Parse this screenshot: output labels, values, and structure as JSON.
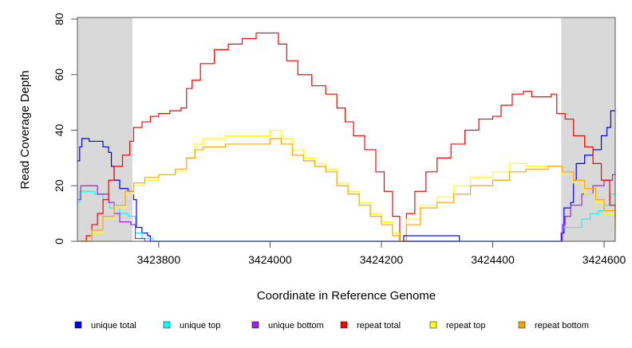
{
  "chart_data": {
    "type": "line",
    "title": "",
    "xlabel": "Coordinate in Reference Genome",
    "ylabel": "Read Coverage Depth",
    "xlim": [
      3423654,
      3424620
    ],
    "ylim": [
      0,
      80
    ],
    "xticks": [
      3423800,
      3424000,
      3424200,
      3424400,
      3424600
    ],
    "yticks": [
      0,
      20,
      40,
      60,
      80
    ],
    "shaded_regions": [
      [
        3423654,
        3423753
      ],
      [
        3424523,
        3424620
      ]
    ],
    "legend_position": "bottom",
    "series": [
      {
        "name": "unique total",
        "color": "#0000ff",
        "points": [
          [
            3423654,
            29
          ],
          [
            3423658,
            34
          ],
          [
            3423662,
            37
          ],
          [
            3423670,
            37
          ],
          [
            3423675,
            36
          ],
          [
            3423690,
            36
          ],
          [
            3423700,
            34
          ],
          [
            3423710,
            32
          ],
          [
            3423715,
            27
          ],
          [
            3423720,
            22
          ],
          [
            3423730,
            19
          ],
          [
            3423745,
            18
          ],
          [
            3423755,
            15
          ],
          [
            3423760,
            5
          ],
          [
            3423770,
            3
          ],
          [
            3423780,
            2
          ],
          [
            3423785,
            0
          ],
          [
            3424520,
            0
          ],
          [
            3424523,
            3
          ],
          [
            3424528,
            12
          ],
          [
            3424540,
            14
          ],
          [
            3424545,
            22
          ],
          [
            3424550,
            28
          ],
          [
            3424565,
            31
          ],
          [
            3424580,
            33
          ],
          [
            3424595,
            38
          ],
          [
            3424605,
            41
          ],
          [
            3424612,
            47
          ],
          [
            3424620,
            47
          ]
        ]
      },
      {
        "name": "unique top",
        "color": "#00ffff",
        "points": [
          [
            3423654,
            14
          ],
          [
            3423658,
            18
          ],
          [
            3423670,
            18
          ],
          [
            3423685,
            17
          ],
          [
            3423700,
            15
          ],
          [
            3423712,
            12
          ],
          [
            3423730,
            10
          ],
          [
            3423745,
            9
          ],
          [
            3423758,
            3
          ],
          [
            3423770,
            1
          ],
          [
            3423790,
            0
          ],
          [
            3424520,
            0
          ],
          [
            3424525,
            5
          ],
          [
            3424555,
            5
          ],
          [
            3424560,
            8
          ],
          [
            3424575,
            10
          ],
          [
            3424590,
            11
          ],
          [
            3424600,
            13
          ],
          [
            3424612,
            17
          ],
          [
            3424620,
            22
          ]
        ]
      },
      {
        "name": "unique bottom",
        "color": "#a020f0",
        "points": [
          [
            3423654,
            15
          ],
          [
            3423660,
            20
          ],
          [
            3423675,
            20
          ],
          [
            3423690,
            17
          ],
          [
            3423710,
            14
          ],
          [
            3423720,
            10
          ],
          [
            3423730,
            7
          ],
          [
            3423750,
            6
          ],
          [
            3423758,
            1
          ],
          [
            3423775,
            0
          ],
          [
            3424520,
            0
          ],
          [
            3424525,
            6
          ],
          [
            3424530,
            9
          ],
          [
            3424540,
            13
          ],
          [
            3424560,
            17
          ],
          [
            3424580,
            20
          ],
          [
            3424600,
            22
          ],
          [
            3424615,
            24
          ],
          [
            3424620,
            25
          ]
        ]
      },
      {
        "name": "repeat total",
        "color": "#ff0000",
        "points": [
          [
            3423660,
            0
          ],
          [
            3423670,
            2
          ],
          [
            3423680,
            6
          ],
          [
            3423690,
            10
          ],
          [
            3423700,
            15
          ],
          [
            3423710,
            22
          ],
          [
            3423720,
            27
          ],
          [
            3423735,
            31
          ],
          [
            3423748,
            36
          ],
          [
            3423755,
            41
          ],
          [
            3423770,
            43
          ],
          [
            3423785,
            45
          ],
          [
            3423800,
            46
          ],
          [
            3423820,
            47
          ],
          [
            3423840,
            48
          ],
          [
            3423850,
            55
          ],
          [
            3423860,
            58
          ],
          [
            3423875,
            64
          ],
          [
            3423900,
            69
          ],
          [
            3423925,
            71
          ],
          [
            3423950,
            73
          ],
          [
            3423975,
            75
          ],
          [
            3424000,
            75
          ],
          [
            3424015,
            71
          ],
          [
            3424030,
            65
          ],
          [
            3424050,
            60
          ],
          [
            3424075,
            56
          ],
          [
            3424100,
            53
          ],
          [
            3424120,
            48
          ],
          [
            3424135,
            43
          ],
          [
            3424150,
            38
          ],
          [
            3424170,
            33
          ],
          [
            3424190,
            25
          ],
          [
            3424205,
            18
          ],
          [
            3424220,
            9
          ],
          [
            3424233,
            0
          ],
          [
            3424245,
            10
          ],
          [
            3424260,
            18
          ],
          [
            3424280,
            25
          ],
          [
            3424300,
            30
          ],
          [
            3424325,
            35
          ],
          [
            3424350,
            40
          ],
          [
            3424375,
            44
          ],
          [
            3424400,
            45
          ],
          [
            3424415,
            49
          ],
          [
            3424435,
            53
          ],
          [
            3424455,
            54
          ],
          [
            3424470,
            52
          ],
          [
            3424490,
            52
          ],
          [
            3424505,
            53
          ],
          [
            3424515,
            46
          ],
          [
            3424530,
            44
          ],
          [
            3424545,
            38
          ],
          [
            3424565,
            34
          ],
          [
            3424580,
            28
          ],
          [
            3424595,
            22
          ],
          [
            3424610,
            13
          ],
          [
            3424620,
            8
          ]
        ]
      },
      {
        "name": "repeat top",
        "color": "#ffff00",
        "points": [
          [
            3423660,
            0
          ],
          [
            3423680,
            3
          ],
          [
            3423700,
            8
          ],
          [
            3423720,
            12
          ],
          [
            3423740,
            17
          ],
          [
            3423755,
            20
          ],
          [
            3423775,
            22
          ],
          [
            3423800,
            24
          ],
          [
            3423830,
            25
          ],
          [
            3423850,
            30
          ],
          [
            3423865,
            35
          ],
          [
            3423880,
            37
          ],
          [
            3423920,
            38
          ],
          [
            3423960,
            38
          ],
          [
            3424000,
            40
          ],
          [
            3424020,
            37
          ],
          [
            3424040,
            33
          ],
          [
            3424060,
            30
          ],
          [
            3424080,
            28
          ],
          [
            3424100,
            26
          ],
          [
            3424120,
            21
          ],
          [
            3424140,
            18
          ],
          [
            3424160,
            14
          ],
          [
            3424180,
            10
          ],
          [
            3424200,
            7
          ],
          [
            3424220,
            3
          ],
          [
            3424232,
            0
          ],
          [
            3424245,
            8
          ],
          [
            3424270,
            13
          ],
          [
            3424300,
            16
          ],
          [
            3424330,
            20
          ],
          [
            3424360,
            23
          ],
          [
            3424400,
            25
          ],
          [
            3424430,
            28
          ],
          [
            3424460,
            27
          ],
          [
            3424500,
            27
          ],
          [
            3424525,
            24
          ],
          [
            3424545,
            21
          ],
          [
            3424565,
            17
          ],
          [
            3424585,
            14
          ],
          [
            3424600,
            10
          ],
          [
            3424620,
            4
          ]
        ]
      },
      {
        "name": "repeat bottom",
        "color": "#ffa500",
        "points": [
          [
            3423660,
            0
          ],
          [
            3423680,
            4
          ],
          [
            3423700,
            9
          ],
          [
            3423720,
            13
          ],
          [
            3423740,
            18
          ],
          [
            3423755,
            21
          ],
          [
            3423775,
            23
          ],
          [
            3423800,
            24
          ],
          [
            3423830,
            26
          ],
          [
            3423850,
            30
          ],
          [
            3423865,
            33
          ],
          [
            3423880,
            34
          ],
          [
            3423920,
            35
          ],
          [
            3423960,
            35
          ],
          [
            3424000,
            37
          ],
          [
            3424020,
            35
          ],
          [
            3424040,
            31
          ],
          [
            3424060,
            29
          ],
          [
            3424080,
            27
          ],
          [
            3424100,
            25
          ],
          [
            3424120,
            20
          ],
          [
            3424140,
            17
          ],
          [
            3424160,
            13
          ],
          [
            3424180,
            9
          ],
          [
            3424200,
            6
          ],
          [
            3424220,
            2
          ],
          [
            3424232,
            0
          ],
          [
            3424245,
            6
          ],
          [
            3424270,
            12
          ],
          [
            3424300,
            14
          ],
          [
            3424330,
            17
          ],
          [
            3424360,
            20
          ],
          [
            3424400,
            22
          ],
          [
            3424430,
            25
          ],
          [
            3424460,
            26
          ],
          [
            3424500,
            27
          ],
          [
            3424525,
            25
          ],
          [
            3424545,
            22
          ],
          [
            3424565,
            19
          ],
          [
            3424585,
            15
          ],
          [
            3424600,
            11
          ],
          [
            3424620,
            4
          ]
        ]
      }
    ],
    "annotations": [
      {
        "type": "box",
        "color": "#0000ff",
        "x": [
          3424240,
          3424340
        ],
        "y": [
          0,
          2
        ]
      }
    ]
  }
}
